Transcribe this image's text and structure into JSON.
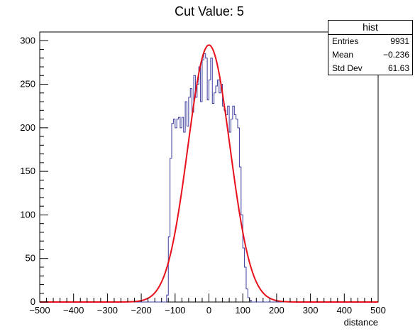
{
  "chart_data": {
    "type": "histogram",
    "title": "Cut Value: 5",
    "xlabel": "distance",
    "ylabel": "",
    "xlim": [
      -500,
      500
    ],
    "ylim": [
      0,
      310
    ],
    "x_ticks": [
      -500,
      -400,
      -300,
      -200,
      -100,
      0,
      100,
      200,
      300,
      400,
      500
    ],
    "y_ticks": [
      0,
      50,
      100,
      150,
      200,
      250,
      300
    ],
    "x_tick_labels": [
      "−500",
      "−400",
      "−300",
      "−200",
      "−100",
      "0",
      "100",
      "200",
      "300",
      "400",
      "500"
    ],
    "y_tick_labels": [
      "0",
      "50",
      "100",
      "150",
      "200",
      "250",
      "300"
    ],
    "grid": false,
    "histogram": {
      "bin_width": 5,
      "bin_edges_range": [
        -125,
        125
      ],
      "counts": [
        8,
        75,
        165,
        205,
        210,
        200,
        210,
        212,
        200,
        212,
        195,
        230,
        202,
        235,
        245,
        218,
        260,
        235,
        250,
        270,
        230,
        278,
        285,
        280,
        232,
        255,
        280,
        228,
        240,
        248,
        255,
        240,
        250,
        225,
        220,
        215,
        225,
        195,
        210,
        225,
        215,
        210,
        200,
        155,
        100,
        62,
        40,
        15,
        5,
        2
      ],
      "color": "#3c3c9e"
    },
    "fit": {
      "type": "gaussian",
      "amplitude": 295,
      "mean": 0,
      "sigma": 62,
      "color": "#e8101a"
    },
    "stats_box": {
      "title": "hist",
      "entries_label": "Entries",
      "entries_value": "9931",
      "mean_label": "Mean",
      "mean_value": "−0.236",
      "stddev_label": "Std Dev",
      "stddev_value": "61.63"
    }
  }
}
